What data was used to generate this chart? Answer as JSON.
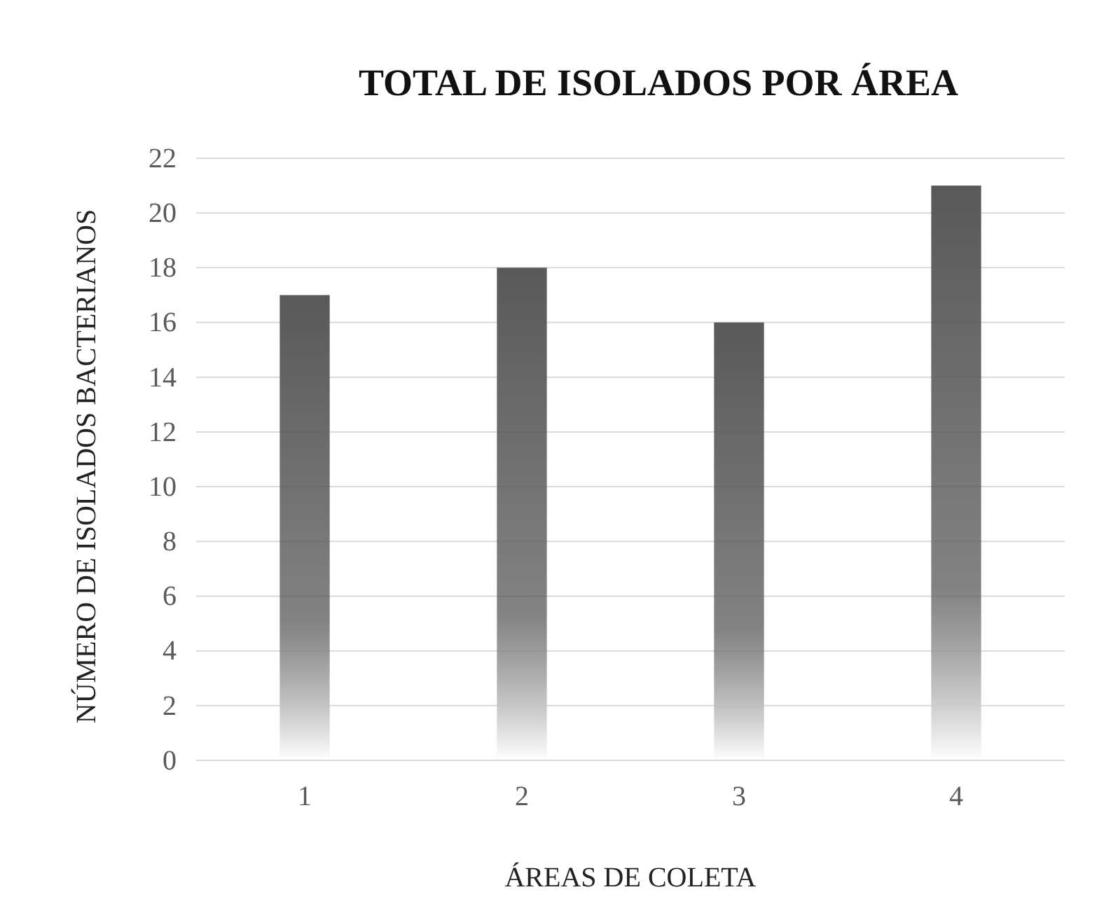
{
  "chart_data": {
    "type": "bar",
    "title": "TOTAL DE ISOLADOS POR ÁREA",
    "xlabel": "ÁREAS DE COLETA",
    "ylabel": "NÚMERO DE ISOLADOS BACTERIANOS",
    "categories": [
      "1",
      "2",
      "3",
      "4"
    ],
    "values": [
      17,
      18,
      16,
      21
    ],
    "color": "#595959",
    "ylim": [
      0,
      22
    ],
    "yticks": [
      0,
      2,
      4,
      6,
      8,
      10,
      12,
      14,
      16,
      18,
      20,
      22
    ],
    "grid": "y"
  }
}
